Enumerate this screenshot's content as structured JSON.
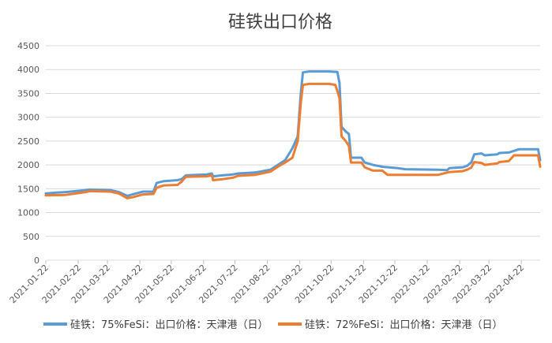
{
  "chart_data": {
    "type": "line",
    "title": "硅铁出口价格",
    "xlabel": "",
    "ylabel": "",
    "ylim": [
      0,
      4500
    ],
    "yticks": [
      0,
      500,
      1000,
      1500,
      2000,
      2500,
      3000,
      3500,
      4000,
      4500
    ],
    "xticks": [
      "2021-01-22",
      "2021-02-22",
      "2021-03-22",
      "2021-04-22",
      "2021-05-22",
      "2021-06-22",
      "2021-07-22",
      "2021-08-22",
      "2021-09-22",
      "2021-10-22",
      "2021-11-22",
      "2021-12-22",
      "2022-01-22",
      "2022-02-22",
      "2022-03-22",
      "2022-04-22"
    ],
    "x_range": [
      "2021-01-22",
      "2022-05-10"
    ],
    "grid": "horizontal",
    "legend": "bottom",
    "series": [
      {
        "name": "硅铁：75%FeSi：出口价格：天津港（日）",
        "color": "#5b9bd5",
        "points": [
          [
            "2021-01-22",
            1400
          ],
          [
            "2021-02-01",
            1420
          ],
          [
            "2021-02-10",
            1430
          ],
          [
            "2021-03-01",
            1470
          ],
          [
            "2021-03-05",
            1480
          ],
          [
            "2021-03-25",
            1470
          ],
          [
            "2021-04-02",
            1430
          ],
          [
            "2021-04-10",
            1350
          ],
          [
            "2021-04-15",
            1380
          ],
          [
            "2021-04-25",
            1440
          ],
          [
            "2021-05-05",
            1440
          ],
          [
            "2021-05-08",
            1620
          ],
          [
            "2021-05-15",
            1660
          ],
          [
            "2021-05-28",
            1680
          ],
          [
            "2021-06-01",
            1700
          ],
          [
            "2021-06-05",
            1780
          ],
          [
            "2021-06-25",
            1800
          ],
          [
            "2021-06-30",
            1820
          ],
          [
            "2021-07-01",
            1760
          ],
          [
            "2021-07-10",
            1780
          ],
          [
            "2021-07-20",
            1800
          ],
          [
            "2021-07-25",
            1820
          ],
          [
            "2021-08-10",
            1840
          ],
          [
            "2021-08-25",
            1900
          ],
          [
            "2021-09-01",
            2000
          ],
          [
            "2021-09-08",
            2100
          ],
          [
            "2021-09-15",
            2350
          ],
          [
            "2021-09-20",
            2600
          ],
          [
            "2021-09-23",
            3500
          ],
          [
            "2021-09-25",
            3940
          ],
          [
            "2021-10-01",
            3960
          ],
          [
            "2021-10-20",
            3960
          ],
          [
            "2021-10-28",
            3950
          ],
          [
            "2021-10-30",
            3720
          ],
          [
            "2021-11-01",
            2800
          ],
          [
            "2021-11-05",
            2700
          ],
          [
            "2021-11-08",
            2650
          ],
          [
            "2021-11-10",
            2150
          ],
          [
            "2021-11-20",
            2150
          ],
          [
            "2021-11-23",
            2050
          ],
          [
            "2021-12-01",
            2000
          ],
          [
            "2021-12-10",
            1960
          ],
          [
            "2021-12-25",
            1930
          ],
          [
            "2022-01-01",
            1910
          ],
          [
            "2022-02-01",
            1900
          ],
          [
            "2022-02-10",
            1890
          ],
          [
            "2022-02-12",
            1930
          ],
          [
            "2022-02-25",
            1950
          ],
          [
            "2022-03-01",
            1980
          ],
          [
            "2022-03-05",
            2050
          ],
          [
            "2022-03-08",
            2220
          ],
          [
            "2022-03-15",
            2240
          ],
          [
            "2022-03-18",
            2200
          ],
          [
            "2022-03-30",
            2220
          ],
          [
            "2022-04-01",
            2250
          ],
          [
            "2022-04-10",
            2260
          ],
          [
            "2022-04-20",
            2330
          ],
          [
            "2022-05-08",
            2330
          ],
          [
            "2022-05-10",
            2100
          ]
        ]
      },
      {
        "name": "硅铁：72%FeSi：出口价格：天津港（日）",
        "color": "#ed7d31",
        "points": [
          [
            "2021-01-22",
            1360
          ],
          [
            "2021-02-10",
            1370
          ],
          [
            "2021-03-01",
            1430
          ],
          [
            "2021-03-05",
            1450
          ],
          [
            "2021-03-25",
            1440
          ],
          [
            "2021-04-02",
            1400
          ],
          [
            "2021-04-10",
            1300
          ],
          [
            "2021-04-15",
            1320
          ],
          [
            "2021-04-25",
            1380
          ],
          [
            "2021-05-05",
            1390
          ],
          [
            "2021-05-08",
            1520
          ],
          [
            "2021-05-15",
            1570
          ],
          [
            "2021-05-28",
            1580
          ],
          [
            "2021-06-01",
            1650
          ],
          [
            "2021-06-05",
            1750
          ],
          [
            "2021-06-25",
            1760
          ],
          [
            "2021-06-30",
            1780
          ],
          [
            "2021-07-01",
            1680
          ],
          [
            "2021-07-10",
            1700
          ],
          [
            "2021-07-20",
            1730
          ],
          [
            "2021-07-25",
            1770
          ],
          [
            "2021-08-10",
            1790
          ],
          [
            "2021-08-25",
            1860
          ],
          [
            "2021-09-01",
            1960
          ],
          [
            "2021-09-08",
            2050
          ],
          [
            "2021-09-15",
            2150
          ],
          [
            "2021-09-20",
            2500
          ],
          [
            "2021-09-23",
            3300
          ],
          [
            "2021-09-25",
            3680
          ],
          [
            "2021-10-01",
            3700
          ],
          [
            "2021-10-20",
            3700
          ],
          [
            "2021-10-26",
            3680
          ],
          [
            "2021-10-28",
            3550
          ],
          [
            "2021-10-30",
            3400
          ],
          [
            "2021-11-01",
            2600
          ],
          [
            "2021-11-05",
            2500
          ],
          [
            "2021-11-08",
            2400
          ],
          [
            "2021-11-10",
            2050
          ],
          [
            "2021-11-20",
            2050
          ],
          [
            "2021-11-23",
            1950
          ],
          [
            "2021-12-01",
            1880
          ],
          [
            "2021-12-10",
            1880
          ],
          [
            "2021-12-15",
            1790
          ],
          [
            "2022-01-01",
            1790
          ],
          [
            "2022-02-01",
            1790
          ],
          [
            "2022-02-12",
            1850
          ],
          [
            "2022-02-25",
            1870
          ],
          [
            "2022-03-01",
            1900
          ],
          [
            "2022-03-05",
            1940
          ],
          [
            "2022-03-08",
            2060
          ],
          [
            "2022-03-15",
            2040
          ],
          [
            "2022-03-18",
            2000
          ],
          [
            "2022-03-30",
            2030
          ],
          [
            "2022-04-01",
            2060
          ],
          [
            "2022-04-10",
            2080
          ],
          [
            "2022-04-15",
            2200
          ],
          [
            "2022-05-08",
            2200
          ],
          [
            "2022-05-10",
            1960
          ]
        ]
      }
    ]
  }
}
